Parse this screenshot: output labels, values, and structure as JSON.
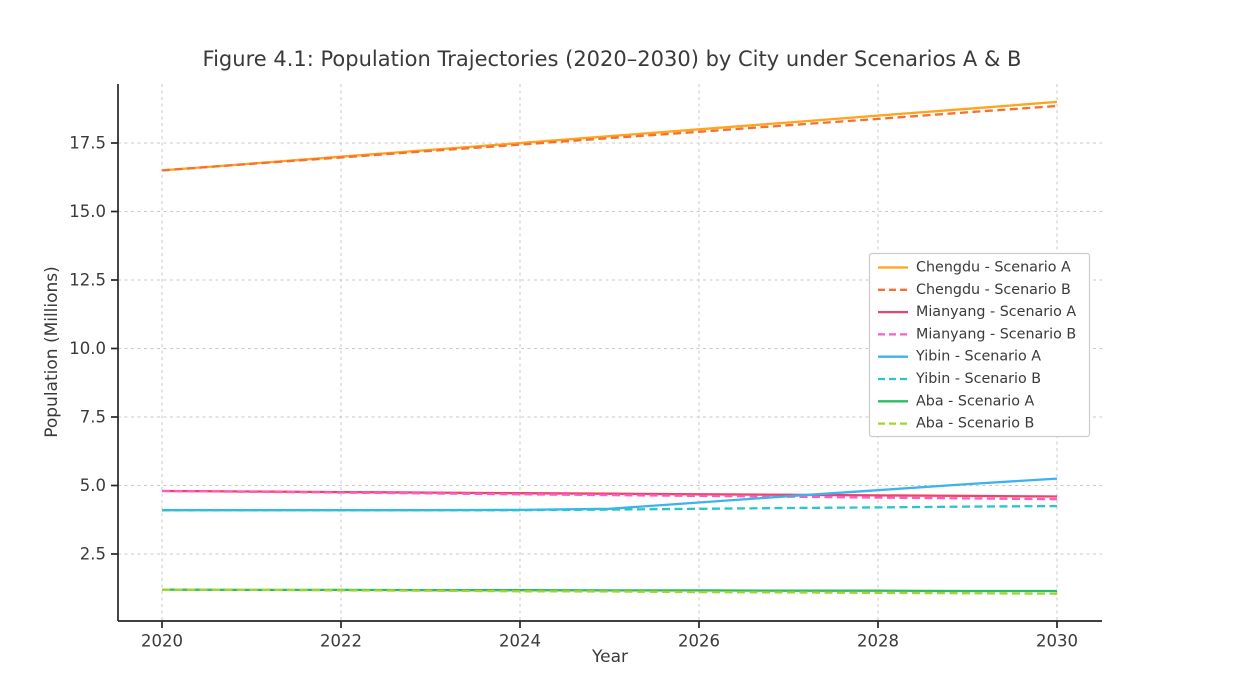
{
  "figure": {
    "title": "Figure 4.1: Population Trajectories (2020–2030) by City under Scenarios A & B",
    "x_label": "Year",
    "y_label": "Population (Millions)"
  },
  "chart_data": {
    "type": "line",
    "title": "Figure 4.1: Population Trajectories (2020–2030) by City under Scenarios A & B",
    "xlabel": "Year",
    "ylabel": "Population (Millions)",
    "x": [
      2020,
      2021,
      2022,
      2023,
      2024,
      2025,
      2026,
      2027,
      2028,
      2029,
      2030
    ],
    "x_ticks": [
      {
        "value": 2020,
        "label": "2020"
      },
      {
        "value": 2022,
        "label": "2022"
      },
      {
        "value": 2024,
        "label": "2024"
      },
      {
        "value": 2026,
        "label": "2026"
      },
      {
        "value": 2028,
        "label": "2028"
      },
      {
        "value": 2030,
        "label": "2030"
      }
    ],
    "y_ticks": [
      {
        "value": 2.5,
        "label": "2.5"
      },
      {
        "value": 5.0,
        "label": "5.0"
      },
      {
        "value": 7.5,
        "label": "7.5"
      },
      {
        "value": 10.0,
        "label": "10.0"
      },
      {
        "value": 12.5,
        "label": "12.5"
      },
      {
        "value": 15.0,
        "label": "15.0"
      },
      {
        "value": 17.5,
        "label": "17.5"
      }
    ],
    "xlim": [
      2019.5,
      2030.5
    ],
    "ylim": [
      0.05,
      19.6
    ],
    "grid": true,
    "legend_position": "center-right",
    "series": [
      {
        "name": "Chengdu - Scenario A",
        "color": "#FFA41B",
        "dash": "solid",
        "values": [
          16.5,
          16.75,
          17.0,
          17.25,
          17.5,
          17.75,
          18.0,
          18.25,
          18.5,
          18.75,
          19.0
        ]
      },
      {
        "name": "Chengdu - Scenario B",
        "color": "#F96F2D",
        "dash": "dashed",
        "values": [
          16.5,
          16.74,
          16.97,
          17.21,
          17.44,
          17.68,
          17.91,
          18.15,
          18.38,
          18.62,
          18.85
        ]
      },
      {
        "name": "Mianyang - Scenario A",
        "color": "#EE4266",
        "dash": "solid",
        "values": [
          4.8,
          4.78,
          4.76,
          4.74,
          4.72,
          4.7,
          4.68,
          4.66,
          4.64,
          4.62,
          4.6
        ]
      },
      {
        "name": "Mianyang - Scenario B",
        "color": "#FB5DC4",
        "dash": "dashed",
        "values": [
          4.8,
          4.77,
          4.74,
          4.71,
          4.68,
          4.65,
          4.62,
          4.59,
          4.56,
          4.53,
          4.5
        ]
      },
      {
        "name": "Yibin - Scenario A",
        "color": "#3DB2F2",
        "dash": "solid",
        "values": [
          4.1,
          4.1,
          4.1,
          4.1,
          4.11,
          4.15,
          4.38,
          4.61,
          4.83,
          5.05,
          5.25
        ]
      },
      {
        "name": "Yibin - Scenario B",
        "color": "#27C5CE",
        "dash": "dashed",
        "values": [
          4.1,
          4.1,
          4.1,
          4.1,
          4.1,
          4.12,
          4.15,
          4.18,
          4.2,
          4.23,
          4.25
        ]
      },
      {
        "name": "Aba - Scenario A",
        "color": "#2ABD63",
        "dash": "solid",
        "values": [
          1.2,
          1.19,
          1.19,
          1.18,
          1.18,
          1.17,
          1.17,
          1.16,
          1.16,
          1.15,
          1.15
        ]
      },
      {
        "name": "Aba - Scenario B",
        "color": "#A2D62A",
        "dash": "dashed",
        "values": [
          1.2,
          1.19,
          1.17,
          1.16,
          1.14,
          1.13,
          1.11,
          1.1,
          1.08,
          1.07,
          1.05
        ]
      }
    ]
  },
  "style_colors": {
    "spine": "#262626",
    "grid": "#c9c9c9",
    "tick_text": "#333333",
    "title_text": "#3a3a3a",
    "legend_border": "#cccccc",
    "legend_bg": "#ffffff"
  }
}
